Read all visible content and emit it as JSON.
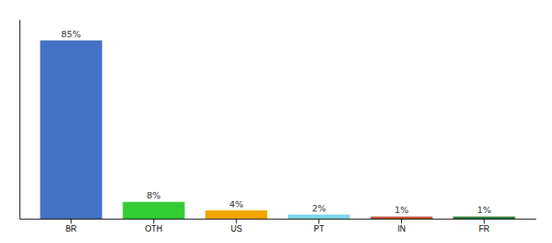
{
  "chart_data": {
    "type": "bar",
    "categories": [
      "BR",
      "OTH",
      "US",
      "PT",
      "IN",
      "FR"
    ],
    "values": [
      85,
      8,
      4,
      2,
      1,
      1
    ],
    "value_labels": [
      "85%",
      "8%",
      "4%",
      "2%",
      "1%",
      "1%"
    ],
    "colors": [
      "#4472c4",
      "#33cc33",
      "#f0a500",
      "#7fd8e8",
      "#c0523a",
      "#2d7a3a"
    ],
    "ylim": [
      0,
      95
    ],
    "data_labels": true,
    "tick_labels": "x"
  }
}
